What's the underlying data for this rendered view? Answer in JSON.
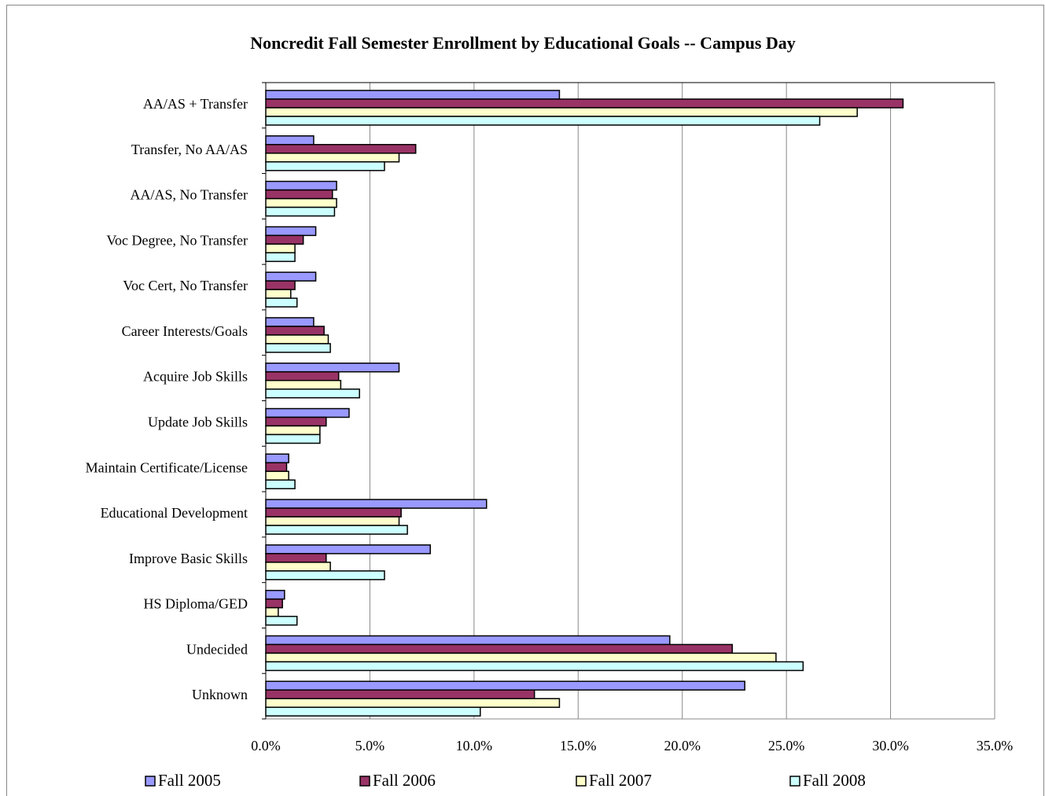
{
  "chart_data": {
    "type": "barh",
    "title": "Noncredit Fall Semester Enrollment by Educational Goals -- Campus Day",
    "categories": [
      "AA/AS + Transfer",
      "Transfer, No AA/AS",
      "AA/AS, No Transfer",
      "Voc Degree, No Transfer",
      "Voc Cert, No Transfer",
      "Career Interests/Goals",
      "Acquire Job Skills",
      "Update Job Skills",
      "Maintain Certificate/License",
      "Educational Development",
      "Improve Basic Skills",
      "HS Diploma/GED",
      "Undecided",
      "Unknown"
    ],
    "series": [
      {
        "name": "Fall 2005",
        "color": "#9999ff",
        "values": [
          14.1,
          2.3,
          3.4,
          2.4,
          2.4,
          2.3,
          6.4,
          4.0,
          1.1,
          10.6,
          7.9,
          0.9,
          19.4,
          23.0
        ]
      },
      {
        "name": "Fall 2006",
        "color": "#993366",
        "values": [
          30.6,
          7.2,
          3.2,
          1.8,
          1.4,
          2.8,
          3.5,
          2.9,
          1.0,
          6.5,
          2.9,
          0.8,
          22.4,
          12.9
        ]
      },
      {
        "name": "Fall 2007",
        "color": "#ffffcc",
        "values": [
          28.4,
          6.4,
          3.4,
          1.4,
          1.2,
          3.0,
          3.6,
          2.6,
          1.1,
          6.4,
          3.1,
          0.6,
          24.5,
          14.1
        ]
      },
      {
        "name": "Fall 2008",
        "color": "#ccffff",
        "values": [
          26.6,
          5.7,
          3.3,
          1.4,
          1.5,
          3.1,
          4.5,
          2.6,
          1.4,
          6.8,
          5.7,
          1.5,
          25.8,
          10.3
        ]
      }
    ],
    "xlim": [
      0,
      35
    ],
    "xticks": [
      {
        "value": 0,
        "label": "0.0%"
      },
      {
        "value": 5,
        "label": "5.0%"
      },
      {
        "value": 10,
        "label": "10.0%"
      },
      {
        "value": 15,
        "label": "15.0%"
      },
      {
        "value": 20,
        "label": "20.0%"
      },
      {
        "value": 25,
        "label": "25.0%"
      },
      {
        "value": 30,
        "label": "30.0%"
      },
      {
        "value": 35,
        "label": "35.0%"
      }
    ],
    "grid": true,
    "legend": "bottom"
  }
}
